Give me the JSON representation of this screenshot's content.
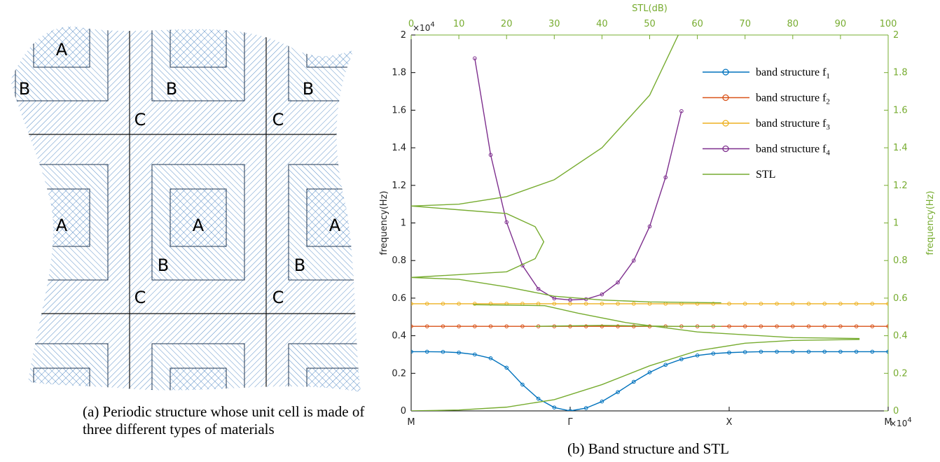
{
  "figure_a": {
    "labels": [
      "A",
      "B",
      "B",
      "C",
      "B",
      "C",
      "A",
      "A",
      "A",
      "B",
      "C",
      "B",
      "C"
    ],
    "caption": "(a) Periodic structure whose unit cell is made of three different types of materials"
  },
  "chart_data": {
    "type": "line",
    "caption": "(b) Band structure and STL",
    "ylabel": "frequency(Hz)",
    "y2label": "frequency(Hz)",
    "x2label": "STL(dB)",
    "y_exponent": {
      "base": "×10",
      "power": "4"
    },
    "x_exponent": {
      "base": "×10",
      "power": "4"
    },
    "xlim": [
      0,
      3
    ],
    "xticks": [
      {
        "value": 0,
        "label": "M"
      },
      {
        "value": 1,
        "label": "Γ"
      },
      {
        "value": 2,
        "label": "X"
      },
      {
        "value": 3,
        "label": "M"
      }
    ],
    "x2lim": [
      0,
      100
    ],
    "x2ticks": [
      0,
      10,
      20,
      30,
      40,
      50,
      60,
      70,
      80,
      90,
      100
    ],
    "ylim": [
      0,
      20000
    ],
    "yticks": [
      0,
      {
        "value": 2000,
        "label": "0.2"
      },
      {
        "value": 4000,
        "label": "0.4"
      },
      {
        "value": 6000,
        "label": "0.6"
      },
      {
        "value": 8000,
        "label": "0.8"
      },
      {
        "value": 10000,
        "label": "1"
      },
      {
        "value": 12000,
        "label": "1.2"
      },
      {
        "value": 14000,
        "label": "1.4"
      },
      {
        "value": 16000,
        "label": "1.6"
      },
      {
        "value": 18000,
        "label": "1.8"
      },
      {
        "value": 20000,
        "label": "2"
      }
    ],
    "y2lim": [
      0,
      20000
    ],
    "y2ticks": [
      0,
      {
        "value": 2000,
        "label": "0.2"
      },
      {
        "value": 4000,
        "label": "0.4"
      },
      {
        "value": 6000,
        "label": "0.6"
      },
      {
        "value": 8000,
        "label": "0.8"
      },
      {
        "value": 10000,
        "label": "1"
      },
      {
        "value": 12000,
        "label": "1.2"
      },
      {
        "value": 14000,
        "label": "1.4"
      },
      {
        "value": 16000,
        "label": "1.6"
      },
      {
        "value": 18000,
        "label": "1.8"
      },
      {
        "value": 20000,
        "label": "2"
      }
    ],
    "legend": "upper right",
    "axis_color": "#000000",
    "axis2_color": "#77ac30",
    "x": [
      0,
      0.1,
      0.2,
      0.3,
      0.4,
      0.5,
      0.6,
      0.7,
      0.8,
      0.9,
      1,
      1.1,
      1.2,
      1.3,
      1.4,
      1.5,
      1.6,
      1.7,
      1.8,
      1.9,
      2,
      2.1,
      2.2,
      2.3,
      2.4,
      2.5,
      2.6,
      2.7,
      2.8,
      2.9,
      3
    ],
    "series": [
      {
        "name": "band structure f1",
        "color": "#0072bd",
        "values": [
          3150,
          3150,
          3140,
          3100,
          3000,
          2800,
          2300,
          1400,
          650,
          180,
          0,
          150,
          500,
          1000,
          1550,
          2050,
          2450,
          2750,
          2950,
          3050,
          3100,
          3130,
          3150,
          3150,
          3150,
          3150,
          3150,
          3150,
          3150,
          3150,
          3150
        ]
      },
      {
        "name": "band structure f2",
        "color": "#d95319",
        "values": [
          4500,
          4500,
          4500,
          4500,
          4500,
          4500,
          4500,
          4500,
          4500,
          4500,
          4500,
          4500,
          4500,
          4500,
          4500,
          4500,
          4500,
          4500,
          4500,
          4500,
          4500,
          4500,
          4500,
          4500,
          4500,
          4500,
          4500,
          4500,
          4500,
          4500,
          4500
        ]
      },
      {
        "name": "band structure f3",
        "color": "#edb120",
        "values": [
          5700,
          5700,
          5700,
          5700,
          5700,
          5700,
          5700,
          5700,
          5700,
          5700,
          5700,
          5700,
          5700,
          5700,
          5700,
          5700,
          5700,
          5700,
          5700,
          5700,
          5700,
          5700,
          5700,
          5700,
          5700,
          5700,
          5700,
          5700,
          5700,
          5700,
          5700
        ]
      },
      {
        "name": "band structure f4",
        "color": "#7e2f8e",
        "values": [
          null,
          null,
          null,
          null,
          18760,
          13620,
          10040,
          7740,
          6490,
          5985,
          5900,
          5945,
          6200,
          6835,
          8000,
          9815,
          12425,
          15950,
          null,
          null,
          null,
          null,
          null,
          null,
          null,
          null,
          null,
          null,
          null,
          null,
          null
        ]
      },
      {
        "name": "STL",
        "color": "#77ac30",
        "axis": "y2",
        "x_axis": "x2",
        "x": [
          0,
          10,
          20,
          30,
          40,
          50,
          60,
          70,
          80,
          94,
          null,
          0,
          10,
          20,
          30,
          40,
          50,
          56,
          null,
          0,
          20,
          26,
          27.8,
          26,
          20,
          0,
          null,
          0,
          10,
          20,
          30,
          40,
          50,
          65,
          null,
          13,
          28,
          35,
          45,
          60,
          80,
          94,
          null,
          26,
          40,
          55,
          65
        ],
        "values": [
          0,
          50,
          200,
          600,
          1400,
          2400,
          3200,
          3600,
          3750,
          3800,
          null,
          10900,
          11000,
          11400,
          12300,
          14000,
          16800,
          20000,
          null,
          10900,
          10500,
          9800,
          9000,
          8100,
          7400,
          7100,
          null,
          7100,
          7000,
          6600,
          6100,
          5900,
          5800,
          5750,
          null,
          5650,
          5600,
          5200,
          4700,
          4200,
          3900,
          3850,
          null,
          4500,
          4550,
          4500,
          4500
        ]
      }
    ]
  }
}
